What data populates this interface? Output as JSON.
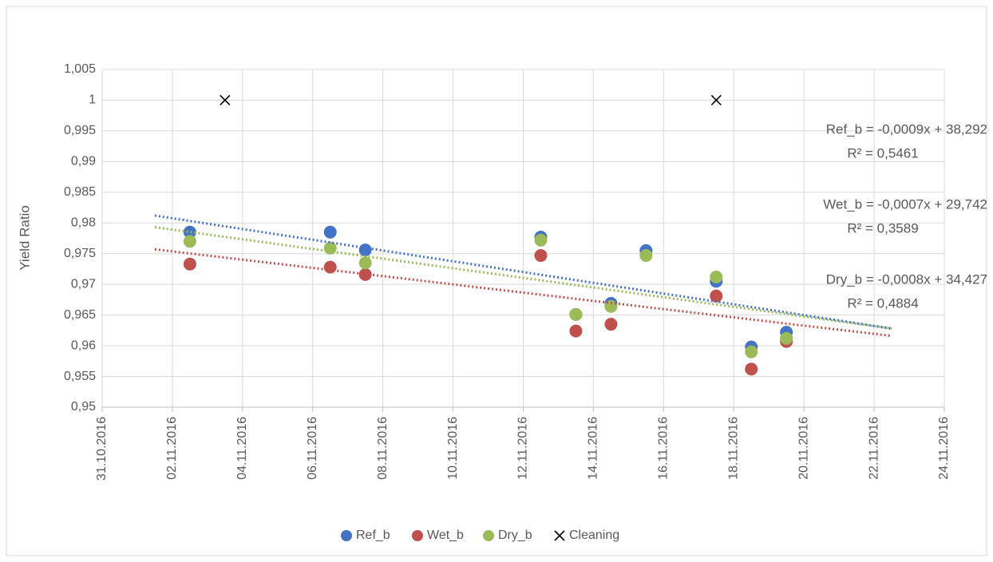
{
  "chart_data": {
    "type": "scatter",
    "y_label": "Yield Ratio",
    "xlim": [
      "31.10.2016",
      "24.11.2016"
    ],
    "xticks": [
      "31.10.2016",
      "02.11.2016",
      "04.11.2016",
      "06.11.2016",
      "08.11.2016",
      "10.11.2016",
      "12.11.2016",
      "14.11.2016",
      "16.11.2016",
      "18.11.2016",
      "20.11.2016",
      "22.11.2016",
      "24.11.2016"
    ],
    "ylim": [
      0.95,
      1.005
    ],
    "yticks": [
      {
        "value": 0.95,
        "label": "0,95"
      },
      {
        "value": 0.955,
        "label": "0,955"
      },
      {
        "value": 0.96,
        "label": "0,96"
      },
      {
        "value": 0.965,
        "label": "0,965"
      },
      {
        "value": 0.97,
        "label": "0,97"
      },
      {
        "value": 0.975,
        "label": "0,975"
      },
      {
        "value": 0.98,
        "label": "0,98"
      },
      {
        "value": 0.985,
        "label": "0,985"
      },
      {
        "value": 0.99,
        "label": "0,99"
      },
      {
        "value": 0.995,
        "label": "0,995"
      },
      1,
      {
        "value": 1.005,
        "label": "1,005"
      }
    ],
    "grid": true,
    "legend": "bottom",
    "x": [
      "02.11.2016",
      "06.11.2016",
      "07.11.2016",
      "12.11.2016",
      "13.11.2016",
      "14.11.2016",
      "15.11.2016",
      "17.11.2016",
      "18.11.2016",
      "19.11.2016"
    ],
    "series": [
      {
        "name": "Ref_b",
        "color": "#4472c4",
        "marker": "circle",
        "values": [
          0.9785,
          0.9785,
          0.9756,
          0.9777,
          0.9651,
          0.9669,
          0.9755,
          0.9705,
          0.9598,
          0.9622
        ],
        "trend_x": [
          "01.11.2016",
          "22.11.2016"
        ],
        "trend_values": [
          0.9812,
          0.9628
        ],
        "equation": "Ref_b = -0,0009x + 38,292",
        "r2": "R² = 0,5461"
      },
      {
        "name": "Wet_b",
        "color": "#c0504d",
        "marker": "circle",
        "values": [
          0.9733,
          0.9728,
          0.9716,
          0.9747,
          0.9624,
          0.9635,
          null,
          0.9681,
          0.9562,
          0.9607
        ],
        "trend_x": [
          "01.11.2016",
          "22.11.2016"
        ],
        "trend_values": [
          0.9757,
          0.9616
        ],
        "equation": "Wet_b = -0,0007x + 29,742",
        "r2": "R² = 0,3589"
      },
      {
        "name": "Dry_b",
        "color": "#9bbb59",
        "marker": "circle",
        "values": [
          0.977,
          0.9759,
          0.9735,
          0.9772,
          0.9651,
          0.9664,
          0.9747,
          0.9712,
          0.959,
          0.9612
        ],
        "trend_x": [
          "01.11.2016",
          "22.11.2016"
        ],
        "trend_values": [
          0.9793,
          0.9628
        ],
        "equation": "Dry_b = -0,0008x + 34,427",
        "r2": "R² = 0,4884"
      }
    ],
    "events": {
      "name": "Cleaning",
      "color": "#000000",
      "marker": "x",
      "x": [
        "03.11.2016",
        "17.11.2016"
      ],
      "values": [
        1,
        1
      ]
    }
  }
}
